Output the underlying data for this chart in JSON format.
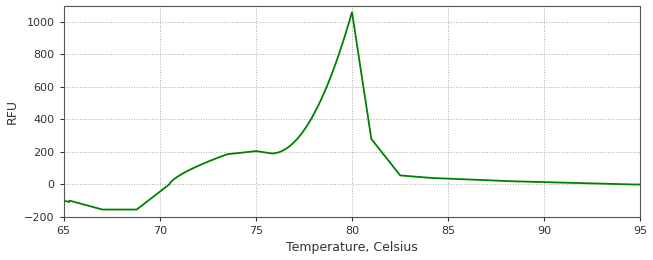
{
  "title": "",
  "xlabel": "Temperature, Celsius",
  "ylabel": "RFU",
  "xlim": [
    65,
    95
  ],
  "ylim": [
    -200,
    1100
  ],
  "xticks": [
    65,
    70,
    75,
    80,
    85,
    90,
    95
  ],
  "yticks": [
    -200,
    0,
    200,
    400,
    600,
    800,
    1000
  ],
  "line_color": "#008000",
  "bg_color": "#ffffff",
  "plot_bg_color": "#ffffff",
  "grid_color": "#aaaaaa",
  "axis_label_color": "#333333",
  "tick_color": "#333333",
  "spine_color": "#555555"
}
